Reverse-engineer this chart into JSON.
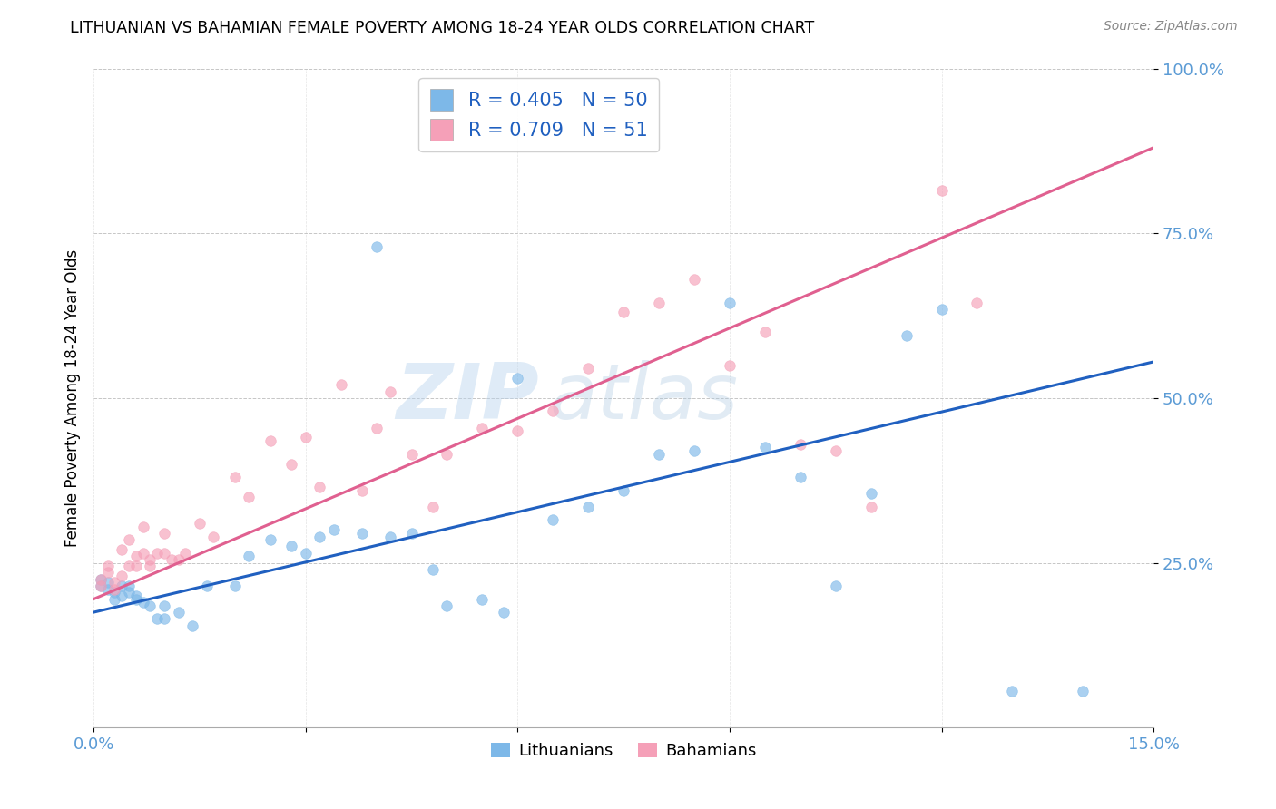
{
  "title": "LITHUANIAN VS BAHAMIAN FEMALE POVERTY AMONG 18-24 YEAR OLDS CORRELATION CHART",
  "source": "Source: ZipAtlas.com",
  "ylabel": "Female Poverty Among 18-24 Year Olds",
  "xlim": [
    0.0,
    0.15
  ],
  "ylim": [
    0.0,
    1.0
  ],
  "color_lith": "#7db8e8",
  "color_bah": "#f5a0b8",
  "line_color_lith": "#2060c0",
  "line_color_bah": "#e06090",
  "scatter_alpha": 0.65,
  "scatter_size": 70,
  "R_lith": 0.405,
  "N_lith": 50,
  "R_bah": 0.709,
  "N_bah": 51,
  "watermark_zip": "ZIP",
  "watermark_atlas": "atlas",
  "lith_line_x0": 0.0,
  "lith_line_y0": 0.175,
  "lith_line_x1": 0.15,
  "lith_line_y1": 0.555,
  "bah_line_x0": 0.0,
  "bah_line_y0": 0.195,
  "bah_line_x1": 0.15,
  "bah_line_y1": 0.88,
  "lith_x": [
    0.001,
    0.001,
    0.002,
    0.002,
    0.003,
    0.003,
    0.004,
    0.004,
    0.005,
    0.005,
    0.006,
    0.006,
    0.007,
    0.008,
    0.009,
    0.01,
    0.01,
    0.012,
    0.014,
    0.016,
    0.02,
    0.022,
    0.025,
    0.028,
    0.03,
    0.032,
    0.034,
    0.038,
    0.04,
    0.042,
    0.045,
    0.048,
    0.05,
    0.055,
    0.058,
    0.06,
    0.065,
    0.07,
    0.075,
    0.08,
    0.085,
    0.09,
    0.095,
    0.1,
    0.105,
    0.11,
    0.115,
    0.12,
    0.13,
    0.14
  ],
  "lith_y": [
    0.215,
    0.225,
    0.21,
    0.22,
    0.195,
    0.205,
    0.215,
    0.2,
    0.215,
    0.205,
    0.2,
    0.195,
    0.19,
    0.185,
    0.165,
    0.185,
    0.165,
    0.175,
    0.155,
    0.215,
    0.215,
    0.26,
    0.285,
    0.275,
    0.265,
    0.29,
    0.3,
    0.295,
    0.73,
    0.29,
    0.295,
    0.24,
    0.185,
    0.195,
    0.175,
    0.53,
    0.315,
    0.335,
    0.36,
    0.415,
    0.42,
    0.645,
    0.425,
    0.38,
    0.215,
    0.355,
    0.595,
    0.635,
    0.055,
    0.055
  ],
  "bah_x": [
    0.001,
    0.001,
    0.002,
    0.002,
    0.003,
    0.003,
    0.004,
    0.004,
    0.005,
    0.005,
    0.006,
    0.006,
    0.007,
    0.007,
    0.008,
    0.008,
    0.009,
    0.01,
    0.01,
    0.011,
    0.012,
    0.013,
    0.015,
    0.017,
    0.02,
    0.022,
    0.025,
    0.028,
    0.03,
    0.032,
    0.035,
    0.038,
    0.04,
    0.042,
    0.045,
    0.048,
    0.05,
    0.055,
    0.06,
    0.065,
    0.07,
    0.075,
    0.08,
    0.085,
    0.09,
    0.095,
    0.1,
    0.105,
    0.11,
    0.12,
    0.125
  ],
  "bah_y": [
    0.225,
    0.215,
    0.245,
    0.235,
    0.22,
    0.21,
    0.27,
    0.23,
    0.285,
    0.245,
    0.26,
    0.245,
    0.305,
    0.265,
    0.255,
    0.245,
    0.265,
    0.295,
    0.265,
    0.255,
    0.255,
    0.265,
    0.31,
    0.29,
    0.38,
    0.35,
    0.435,
    0.4,
    0.44,
    0.365,
    0.52,
    0.36,
    0.455,
    0.51,
    0.415,
    0.335,
    0.415,
    0.455,
    0.45,
    0.48,
    0.545,
    0.63,
    0.645,
    0.68,
    0.55,
    0.6,
    0.43,
    0.42,
    0.335,
    0.815,
    0.645
  ]
}
